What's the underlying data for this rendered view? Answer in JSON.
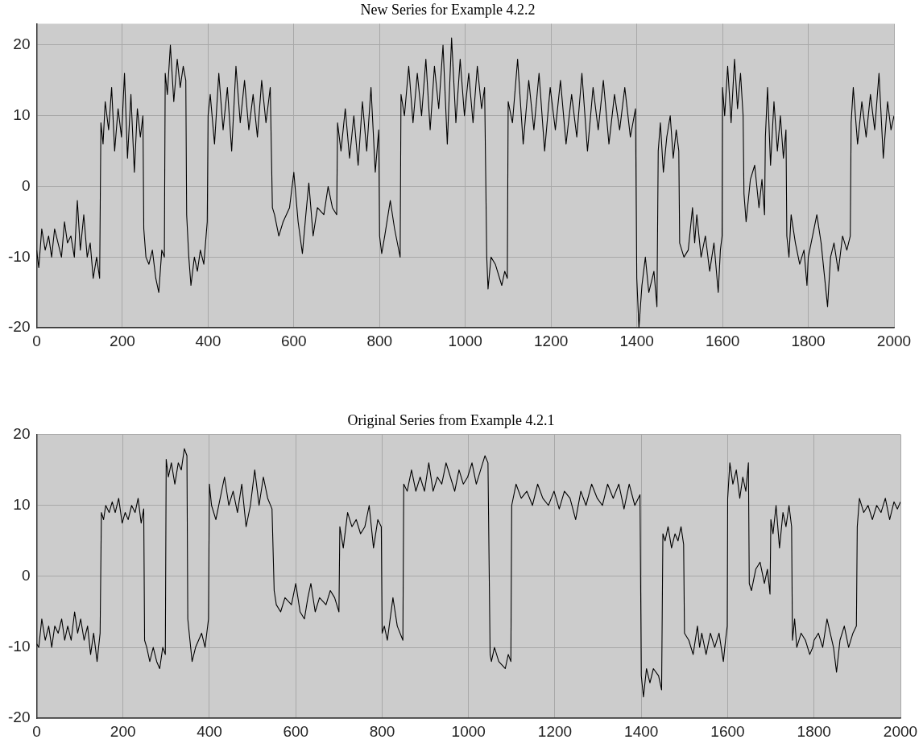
{
  "chart_data": [
    {
      "type": "line",
      "title": "New Series for Example 4.2.2",
      "color": "#000000",
      "grid": true,
      "xlim": [
        0,
        2000
      ],
      "xticks": [
        0,
        200,
        400,
        600,
        800,
        1000,
        1200,
        1400,
        1600,
        1800,
        2000
      ],
      "ylim": [
        -20,
        23
      ],
      "yticks": [
        -20,
        -10,
        0,
        10,
        20
      ],
      "x": [
        0,
        5,
        12,
        20,
        28,
        35,
        42,
        50,
        58,
        65,
        72,
        80,
        88,
        95,
        102,
        110,
        118,
        125,
        132,
        140,
        147,
        150,
        155,
        160,
        168,
        175,
        182,
        190,
        198,
        205,
        212,
        220,
        228,
        235,
        242,
        248,
        250,
        255,
        262,
        270,
        278,
        285,
        292,
        298,
        300,
        305,
        312,
        320,
        328,
        335,
        342,
        348,
        350,
        355,
        360,
        368,
        375,
        382,
        390,
        398,
        400,
        405,
        415,
        425,
        435,
        445,
        455,
        465,
        475,
        485,
        495,
        505,
        515,
        525,
        535,
        545,
        550,
        555,
        565,
        575,
        590,
        600,
        610,
        620,
        628,
        635,
        645,
        655,
        670,
        680,
        690,
        700,
        702,
        710,
        720,
        730,
        740,
        750,
        760,
        770,
        780,
        790,
        798,
        800,
        805,
        812,
        825,
        835,
        848,
        850,
        858,
        868,
        878,
        888,
        898,
        908,
        918,
        928,
        938,
        948,
        958,
        968,
        978,
        988,
        998,
        1008,
        1018,
        1028,
        1038,
        1045,
        1050,
        1053,
        1060,
        1070,
        1085,
        1092,
        1098,
        1100,
        1110,
        1122,
        1135,
        1148,
        1160,
        1172,
        1185,
        1198,
        1210,
        1222,
        1235,
        1248,
        1260,
        1272,
        1285,
        1298,
        1310,
        1322,
        1335,
        1348,
        1360,
        1372,
        1385,
        1397,
        1400,
        1405,
        1412,
        1420,
        1428,
        1440,
        1447,
        1450,
        1455,
        1462,
        1470,
        1478,
        1485,
        1492,
        1498,
        1500,
        1510,
        1520,
        1530,
        1535,
        1540,
        1550,
        1560,
        1570,
        1580,
        1590,
        1595,
        1599,
        1600,
        1605,
        1612,
        1620,
        1628,
        1635,
        1642,
        1648,
        1650,
        1655,
        1665,
        1675,
        1685,
        1692,
        1698,
        1700,
        1705,
        1712,
        1720,
        1728,
        1735,
        1742,
        1748,
        1750,
        1755,
        1760,
        1770,
        1780,
        1790,
        1797,
        1800,
        1810,
        1820,
        1830,
        1845,
        1852,
        1860,
        1870,
        1880,
        1890,
        1898,
        1900,
        1905,
        1915,
        1925,
        1935,
        1945,
        1955,
        1965,
        1975,
        1985,
        1993,
        2000
      ],
      "values": [
        -9,
        -11.5,
        -6,
        -9,
        -7,
        -10,
        -6,
        -8,
        -10,
        -5,
        -8,
        -7,
        -10,
        -2,
        -9,
        -4,
        -10,
        -8,
        -13,
        -10,
        -13,
        9,
        6,
        12,
        8,
        14,
        5,
        11,
        7,
        16,
        4,
        13,
        2,
        11,
        7,
        10,
        -6,
        -10,
        -11,
        -9,
        -13,
        -15,
        -9,
        -10,
        16,
        13,
        20,
        12,
        18,
        14,
        17,
        15,
        -4,
        -10,
        -14,
        -10,
        -12,
        -9,
        -11,
        -5,
        10,
        13,
        6,
        16,
        8,
        14,
        5,
        17,
        9,
        15,
        8,
        13,
        7,
        15,
        9,
        14,
        -3,
        -4,
        -7,
        -5,
        -3,
        2,
        -5,
        -9.5,
        -4,
        0.5,
        -7,
        -3,
        -4,
        0,
        -3,
        -4,
        9,
        5,
        11,
        4,
        10,
        3,
        12,
        5,
        14,
        2,
        8,
        -7,
        -9.5,
        -7,
        -2,
        -6,
        -10,
        13,
        10,
        17,
        9,
        16,
        10,
        18,
        8,
        17,
        11,
        20,
        6,
        21,
        9,
        18,
        10,
        16,
        9,
        17,
        11,
        14,
        -10,
        -14.5,
        -10,
        -11,
        -14,
        -12,
        -13,
        12,
        9,
        18,
        6,
        15,
        8,
        16,
        5,
        14,
        8,
        15,
        6,
        13,
        7,
        16,
        5,
        14,
        8,
        15,
        6,
        13,
        8,
        14,
        7,
        11,
        -13,
        -20,
        -14,
        -10,
        -15,
        -12,
        -17,
        5,
        9,
        2,
        7,
        10,
        4,
        8,
        5,
        -8,
        -10,
        -9,
        -3,
        -8,
        -4,
        -10,
        -7,
        -12,
        -8,
        -15,
        -9,
        -7,
        14,
        10,
        17,
        9,
        18,
        11,
        16,
        10,
        -1,
        -5,
        1,
        3,
        -3,
        1,
        -4,
        7,
        14,
        3,
        12,
        5,
        10,
        4,
        8,
        -7,
        -10,
        -4,
        -8,
        -11,
        -9,
        -14,
        -10,
        -7,
        -4,
        -8,
        -17,
        -10,
        -8,
        -12,
        -7,
        -9,
        -7,
        9,
        14,
        6,
        12,
        7,
        13,
        8,
        16,
        4,
        12,
        8,
        10
      ]
    },
    {
      "type": "line",
      "title": "Original Series from Example 4.2.1",
      "color": "#000000",
      "grid": true,
      "xlim": [
        0,
        2000
      ],
      "xticks": [
        0,
        200,
        400,
        600,
        800,
        1000,
        1200,
        1400,
        1600,
        1800,
        2000
      ],
      "ylim": [
        -20,
        20
      ],
      "yticks": [
        -20,
        -10,
        0,
        10,
        20
      ],
      "x": [
        0,
        5,
        12,
        20,
        28,
        35,
        42,
        50,
        58,
        65,
        72,
        80,
        88,
        95,
        102,
        110,
        118,
        125,
        132,
        140,
        147,
        150,
        155,
        160,
        168,
        175,
        182,
        190,
        198,
        205,
        212,
        220,
        228,
        235,
        242,
        248,
        250,
        255,
        262,
        270,
        278,
        285,
        292,
        298,
        300,
        305,
        312,
        320,
        328,
        335,
        342,
        348,
        350,
        355,
        360,
        368,
        375,
        382,
        390,
        398,
        400,
        405,
        415,
        425,
        435,
        445,
        455,
        465,
        475,
        485,
        495,
        505,
        515,
        525,
        535,
        545,
        550,
        555,
        565,
        575,
        590,
        600,
        610,
        620,
        628,
        635,
        645,
        655,
        670,
        680,
        690,
        700,
        702,
        710,
        720,
        730,
        740,
        750,
        760,
        770,
        780,
        790,
        798,
        800,
        805,
        812,
        825,
        835,
        848,
        850,
        858,
        868,
        878,
        888,
        898,
        908,
        918,
        928,
        938,
        948,
        958,
        968,
        978,
        988,
        998,
        1008,
        1018,
        1028,
        1038,
        1045,
        1050,
        1053,
        1060,
        1070,
        1085,
        1092,
        1098,
        1100,
        1110,
        1122,
        1135,
        1148,
        1160,
        1172,
        1185,
        1198,
        1210,
        1222,
        1235,
        1248,
        1260,
        1272,
        1285,
        1298,
        1310,
        1322,
        1335,
        1348,
        1360,
        1372,
        1385,
        1397,
        1400,
        1405,
        1412,
        1420,
        1428,
        1440,
        1447,
        1450,
        1455,
        1462,
        1470,
        1478,
        1485,
        1492,
        1498,
        1500,
        1510,
        1520,
        1530,
        1535,
        1540,
        1550,
        1560,
        1570,
        1580,
        1590,
        1595,
        1599,
        1600,
        1605,
        1612,
        1620,
        1628,
        1635,
        1642,
        1648,
        1650,
        1655,
        1665,
        1675,
        1685,
        1692,
        1698,
        1700,
        1705,
        1712,
        1720,
        1728,
        1735,
        1742,
        1748,
        1750,
        1755,
        1760,
        1770,
        1780,
        1790,
        1797,
        1800,
        1810,
        1820,
        1830,
        1845,
        1852,
        1860,
        1870,
        1880,
        1890,
        1898,
        1900,
        1905,
        1915,
        1925,
        1935,
        1945,
        1955,
        1965,
        1975,
        1985,
        1993,
        2000
      ],
      "values": [
        -9.5,
        -10,
        -6,
        -9,
        -7,
        -10,
        -7,
        -8,
        -6,
        -9,
        -7,
        -9,
        -5,
        -8,
        -6,
        -9,
        -7,
        -11,
        -8,
        -12,
        -8,
        9,
        8,
        10,
        9,
        10.5,
        9,
        11,
        7.5,
        9,
        8,
        10,
        9,
        11,
        7.5,
        9.5,
        -9,
        -10,
        -12,
        -10,
        -12,
        -13,
        -10,
        -11,
        16.5,
        14,
        16,
        13,
        16,
        15,
        18,
        17,
        -6,
        -9,
        -12,
        -10,
        -9,
        -8,
        -10,
        -6,
        13,
        10,
        8,
        11,
        14,
        10,
        12,
        9,
        13,
        7,
        10,
        15,
        10,
        14,
        11,
        9.5,
        -2,
        -4,
        -5,
        -3,
        -4,
        -1,
        -5,
        -6,
        -3,
        -1,
        -5,
        -3,
        -4,
        -2,
        -3,
        -5,
        7,
        4,
        9,
        7,
        8,
        6,
        7,
        10,
        4,
        8,
        7,
        -8,
        -7,
        -9,
        -3,
        -7,
        -9,
        13,
        12,
        15,
        12,
        14,
        12,
        16,
        12,
        14,
        13,
        16,
        14,
        12,
        15,
        13,
        14,
        16,
        13,
        15,
        17,
        16,
        -11,
        -12,
        -10,
        -12,
        -13,
        -11,
        -12,
        10,
        13,
        11,
        12,
        10,
        13,
        11,
        10,
        12,
        9.5,
        12,
        11,
        8,
        12,
        10,
        13,
        11,
        10,
        13,
        11,
        13,
        9.5,
        13,
        10,
        11.5,
        -14,
        -17,
        -13,
        -15,
        -13,
        -14,
        -16,
        6,
        5,
        7,
        4,
        6,
        5,
        7,
        4.5,
        -8,
        -9,
        -11,
        -7,
        -10,
        -8,
        -11,
        -8,
        -10,
        -8,
        -12,
        -9,
        -7,
        11,
        16,
        13,
        15,
        11,
        14,
        12,
        16,
        -1,
        -2,
        1,
        2,
        -1,
        1,
        -2.5,
        8,
        6,
        10,
        4,
        9,
        7,
        10,
        7,
        -9,
        -6,
        -10,
        -8,
        -9,
        -11,
        -10,
        -9,
        -8,
        -10,
        -6,
        -10,
        -13.5,
        -9,
        -7,
        -10,
        -8,
        -7,
        7,
        11,
        9,
        10,
        8,
        10,
        9,
        11,
        8,
        10.5,
        9.5,
        10.5
      ]
    }
  ]
}
